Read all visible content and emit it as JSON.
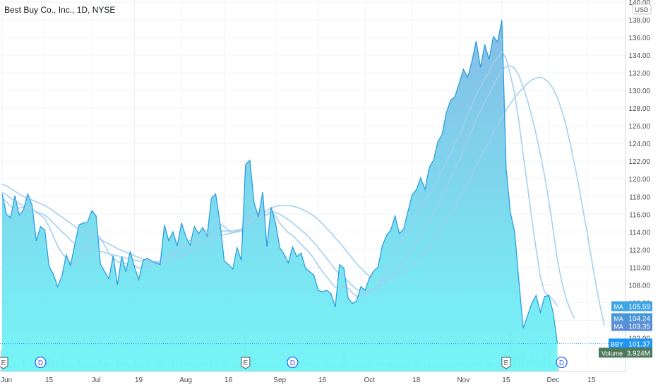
{
  "header": {
    "symbol_title": "Best Buy Co., Inc., 1D, NYSE"
  },
  "currency_label": "USD",
  "colors": {
    "price_line": "#2b9fe0",
    "area_top": "#7fb8e4",
    "area_bottom": "#6ff5f6",
    "ma_line": "#9fcff0",
    "grid": "#f0f3fa",
    "axis_text": "#4a4a4a",
    "label_ma1": "#3fa6e6",
    "label_ma2": "#4a96d9",
    "label_ma3": "#5b8ed6",
    "label_price": "#1f96f3",
    "label_volume": "#4e7a5c",
    "volume_bar": "#a8dcdc"
  },
  "chart_data": {
    "type": "area",
    "title": "Best Buy Co., Inc., 1D, NYSE",
    "ylim": [
      99,
      140
    ],
    "y_ticks": [
      102,
      104,
      106,
      108,
      110,
      112,
      114,
      116,
      118,
      120,
      122,
      124,
      126,
      128,
      130,
      132,
      134,
      136,
      138,
      140
    ],
    "x_labels": [
      {
        "label": "Jun",
        "i": 0
      },
      {
        "label": "15",
        "i": 10
      },
      {
        "label": "Jul",
        "i": 21
      },
      {
        "label": "19",
        "i": 31
      },
      {
        "label": "Aug",
        "i": 42
      },
      {
        "label": "16",
        "i": 52
      },
      {
        "label": "Sep",
        "i": 64
      },
      {
        "label": "16",
        "i": 74
      },
      {
        "label": "Oct",
        "i": 85
      },
      {
        "label": "18",
        "i": 96
      },
      {
        "label": "Nov",
        "i": 107
      },
      {
        "label": "15",
        "i": 117
      },
      {
        "label": "Dec",
        "i": 128
      },
      {
        "label": "15",
        "i": 137
      }
    ],
    "n_slots": 142,
    "series": [
      {
        "name": "BBY",
        "values": [
          118.3,
          116.0,
          115.6,
          118.1,
          115.9,
          116.5,
          118.3,
          117.0,
          113.0,
          114.6,
          114.2,
          110.1,
          109.2,
          107.8,
          109.0,
          111.4,
          110.2,
          112.5,
          114.8,
          115.0,
          115.1,
          116.4,
          115.8,
          110.4,
          109.5,
          108.7,
          111.3,
          108.0,
          111.2,
          109.5,
          111.8,
          110.0,
          108.6,
          110.8,
          111.0,
          110.7,
          110.5,
          110.3,
          114.8,
          113.0,
          114.0,
          112.4,
          115.0,
          113.5,
          112.5,
          114.6,
          113.8,
          114.5,
          113.5,
          117.8,
          118.3,
          115.0,
          110.7,
          110.3,
          109.8,
          112.2,
          110.8,
          121.6,
          122.1,
          117.3,
          115.7,
          118.5,
          112.3,
          116.8,
          115.0,
          112.2,
          111.5,
          110.5,
          112.3,
          111.2,
          111.6,
          109.9,
          109.5,
          109.1,
          107.4,
          107.2,
          107.4,
          107.0,
          105.5,
          110.3,
          109.9,
          106.5,
          105.9,
          106.2,
          107.8,
          107.4,
          108.8,
          109.6,
          110.0,
          112.4,
          113.6,
          114.2,
          115.8,
          113.8,
          114.3,
          116.3,
          118.2,
          118.8,
          120.1,
          118.8,
          121.3,
          122.1,
          124.2,
          125.0,
          127.5,
          128.9,
          129.3,
          130.8,
          132.4,
          131.5,
          133.3,
          135.6,
          132.6,
          135.2,
          133.5,
          136.1,
          135.5,
          138.0,
          121.2,
          116.2,
          114.0,
          108.4,
          103.1,
          104.5,
          105.9,
          106.8,
          104.9,
          106.7,
          106.8,
          104.9,
          101.4,
          null,
          null,
          null,
          null,
          null,
          null,
          null,
          null,
          null,
          null,
          null
        ]
      },
      {
        "name": "MA",
        "label": "105.59",
        "values": [
          117.9,
          117.4,
          116.9,
          116.6,
          116.7,
          116.8,
          116.8,
          116.6,
          116.2,
          115.9,
          115.5,
          114.6,
          113.5,
          112.4,
          111.6,
          111.0,
          110.5,
          110.3,
          110.8,
          111.6,
          112.6,
          113.5,
          113.8,
          113.3,
          112.5,
          111.6,
          111.1,
          110.6,
          110.6,
          110.4,
          110.3,
          110.2,
          109.9,
          110.0,
          110.0,
          110.1,
          110.2,
          110.4,
          111.1,
          111.3,
          111.7,
          112.0,
          112.6,
          112.8,
          113.0,
          113.4,
          113.7,
          113.8,
          114.2,
          114.7,
          115.1,
          114.9,
          114.6,
          114.2,
          113.9,
          114.0,
          114.1,
          115.1,
          116.1,
          116.5,
          116.1,
          115.9,
          115.9,
          116.4,
          115.8,
          115.0,
          114.4,
          113.9,
          113.6,
          113.1,
          112.6,
          112.1,
          111.6,
          111.0,
          110.2,
          109.5,
          108.9,
          108.3,
          107.7,
          107.8,
          107.8,
          107.6,
          107.1,
          106.7,
          106.8,
          106.9,
          107.2,
          107.5,
          107.9,
          108.8,
          109.8,
          110.8,
          111.6,
          112.3,
          113.2,
          114.1,
          115.0,
          116.0,
          116.9,
          117.6,
          118.3,
          119.1,
          120.1,
          121.0,
          122.0,
          122.9,
          123.9,
          124.9,
          126.0,
          127.2,
          128.3,
          129.5,
          130.4,
          131.3,
          132.1,
          133.2,
          133.7,
          134.4,
          133.6,
          131.8,
          129.6,
          126.5,
          122.7,
          119.2,
          115.5,
          112.1,
          108.9,
          107.2,
          106.8,
          106.3,
          105.6,
          null,
          null,
          null,
          null,
          null,
          null,
          null,
          null,
          null,
          null,
          null
        ]
      },
      {
        "name": "MA",
        "label": "104.24",
        "values": [
          118.5,
          118.2,
          117.8,
          117.5,
          117.2,
          116.9,
          116.6,
          116.5,
          116.3,
          116.1,
          115.9,
          115.5,
          115.0,
          114.5,
          114.0,
          113.6,
          113.1,
          112.7,
          112.4,
          112.3,
          112.2,
          112.0,
          111.9,
          111.8,
          111.7,
          111.5,
          111.4,
          111.3,
          111.2,
          111.0,
          110.9,
          110.8,
          110.7,
          110.7,
          110.7,
          110.6,
          110.6,
          110.7,
          111.0,
          111.3,
          111.5,
          111.7,
          112.0,
          112.2,
          112.4,
          112.7,
          113.0,
          113.2,
          113.4,
          113.7,
          114.0,
          114.1,
          114.1,
          114.1,
          114.1,
          114.2,
          114.3,
          114.8,
          115.3,
          115.6,
          115.6,
          115.8,
          116.0,
          116.3,
          116.2,
          116.0,
          115.7,
          115.4,
          115.0,
          114.6,
          114.2,
          113.8,
          113.3,
          112.8,
          112.2,
          111.6,
          111.0,
          110.4,
          109.7,
          109.3,
          108.9,
          108.4,
          107.9,
          107.5,
          107.4,
          107.3,
          107.4,
          107.5,
          107.6,
          108.0,
          108.5,
          109.0,
          109.6,
          110.1,
          110.7,
          111.4,
          112.1,
          112.9,
          113.7,
          114.4,
          115.2,
          116.1,
          117.1,
          118.0,
          119.1,
          120.1,
          121.1,
          122.2,
          123.3,
          124.4,
          125.5,
          126.7,
          127.7,
          128.7,
          129.6,
          130.6,
          131.4,
          132.3,
          132.7,
          132.8,
          132.5,
          131.7,
          130.4,
          128.9,
          127.1,
          125.1,
          122.8,
          120.3,
          117.5,
          114.3,
          110.8,
          108.4,
          106.5,
          105.2,
          104.2,
          null,
          null,
          null,
          null,
          null,
          null
        ]
      },
      {
        "name": "MA",
        "label": "103.35",
        "values": [
          119.4,
          119.2,
          118.9,
          118.6,
          118.3,
          118.0,
          117.8,
          117.6,
          117.4,
          117.2,
          117.0,
          116.7,
          116.4,
          116.0,
          115.7,
          115.3,
          115.0,
          114.6,
          114.3,
          114.1,
          113.8,
          113.6,
          113.4,
          113.1,
          112.9,
          112.6,
          112.4,
          112.1,
          111.9,
          111.7,
          111.5,
          111.3,
          111.1,
          110.9,
          110.8,
          110.6,
          110.5,
          110.5,
          110.6,
          110.7,
          110.9,
          111.1,
          111.3,
          111.5,
          111.7,
          112.0,
          112.2,
          112.5,
          112.8,
          113.1,
          113.4,
          113.6,
          113.7,
          113.8,
          113.9,
          114.1,
          114.3,
          114.7,
          115.1,
          115.5,
          115.8,
          116.1,
          116.4,
          116.7,
          116.9,
          117.0,
          117.0,
          117.0,
          116.9,
          116.8,
          116.6,
          116.4,
          116.1,
          115.8,
          115.4,
          114.9,
          114.4,
          113.9,
          113.3,
          112.8,
          112.2,
          111.6,
          111.0,
          110.4,
          109.9,
          109.4,
          109.0,
          108.7,
          108.5,
          108.5,
          108.6,
          108.8,
          109.0,
          109.2,
          109.5,
          109.9,
          110.3,
          110.8,
          111.3,
          111.8,
          112.4,
          113.1,
          113.8,
          114.5,
          115.3,
          116.1,
          116.9,
          117.8,
          118.7,
          119.6,
          120.5,
          121.5,
          122.4,
          123.3,
          124.2,
          125.2,
          126.1,
          127.0,
          127.8,
          128.5,
          129.2,
          129.8,
          130.3,
          130.8,
          131.2,
          131.4,
          131.5,
          131.3,
          130.9,
          130.2,
          129.2,
          127.8,
          126.1,
          124.0,
          121.7,
          119.2,
          116.5,
          113.8,
          110.9,
          108.1,
          105.6,
          103.4
        ]
      }
    ],
    "volume": [
      30,
      20,
      13,
      15,
      12,
      17,
      11,
      13,
      10,
      15,
      11,
      20,
      17,
      14,
      24,
      14,
      11,
      10,
      16,
      12,
      14,
      13,
      10,
      18,
      14,
      12,
      10,
      16,
      13,
      14,
      11,
      15,
      12,
      10,
      14,
      11,
      13,
      16,
      12,
      11,
      14,
      12,
      19,
      13,
      15,
      12,
      10,
      14,
      12,
      17,
      15,
      11,
      13,
      11,
      10,
      14,
      12,
      52,
      27,
      19,
      15,
      13,
      11,
      14,
      12,
      10,
      13,
      15,
      12,
      11,
      14,
      12,
      13,
      10,
      12,
      11,
      14,
      12,
      10,
      13,
      30,
      14,
      12,
      11,
      10,
      12,
      14,
      11,
      13,
      15,
      12,
      14,
      11,
      13,
      12,
      14,
      11,
      15,
      13,
      12,
      14,
      11,
      13,
      15,
      12,
      13,
      10,
      14,
      12,
      11,
      12,
      13,
      15,
      11,
      14,
      12,
      13,
      18,
      28,
      55,
      23,
      25,
      28,
      16,
      20,
      18,
      14,
      22,
      30,
      12,
      15
    ],
    "last_price": {
      "name": "BBY",
      "value": "101.37"
    },
    "volume_label": {
      "name": "Volume",
      "value": "3.924M"
    },
    "event_markers": [
      {
        "letter": "E",
        "i": 0
      },
      {
        "letter": "D",
        "i": 9
      },
      {
        "letter": "E",
        "i": 57
      },
      {
        "letter": "D",
        "i": 68
      },
      {
        "letter": "E",
        "i": 118
      },
      {
        "letter": "D",
        "i": 131
      }
    ]
  }
}
